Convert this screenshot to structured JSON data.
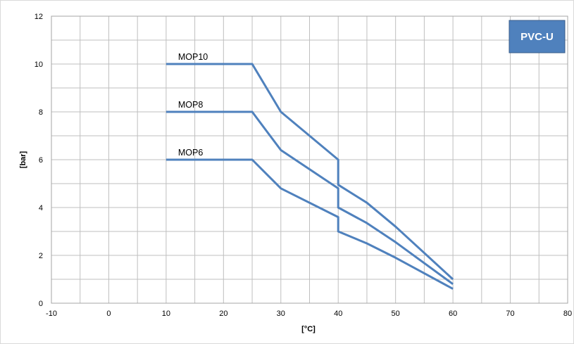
{
  "chart_data": {
    "type": "line",
    "xlabel": "[°C]",
    "ylabel": "[bar]",
    "xlim": [
      -10,
      80
    ],
    "ylim": [
      0,
      12
    ],
    "x_ticks": [
      -10,
      0,
      10,
      20,
      30,
      40,
      50,
      60,
      70,
      80
    ],
    "y_ticks": [
      0,
      2,
      4,
      6,
      8,
      10,
      12
    ],
    "x_minor_step": 5,
    "y_minor_step": 1,
    "grid": true,
    "badge": "PVC-U",
    "colors": {
      "series": "#4f81bd",
      "badge": "#4f81bd",
      "grid": "#bfbfbf"
    },
    "series": [
      {
        "name": "MOP10",
        "x": [
          10,
          25,
          30,
          40,
          40,
          45,
          50,
          60
        ],
        "y": [
          10,
          10,
          8,
          6,
          4.95,
          4.2,
          3.2,
          1.0
        ]
      },
      {
        "name": "MOP8",
        "x": [
          10,
          25,
          30,
          40,
          40,
          45,
          50,
          60
        ],
        "y": [
          8,
          8,
          6.4,
          4.8,
          4.0,
          3.35,
          2.55,
          0.8
        ]
      },
      {
        "name": "MOP6",
        "x": [
          10,
          25,
          30,
          40,
          40,
          45,
          50,
          60
        ],
        "y": [
          6,
          6,
          4.8,
          3.6,
          3.0,
          2.5,
          1.9,
          0.6
        ]
      }
    ]
  }
}
